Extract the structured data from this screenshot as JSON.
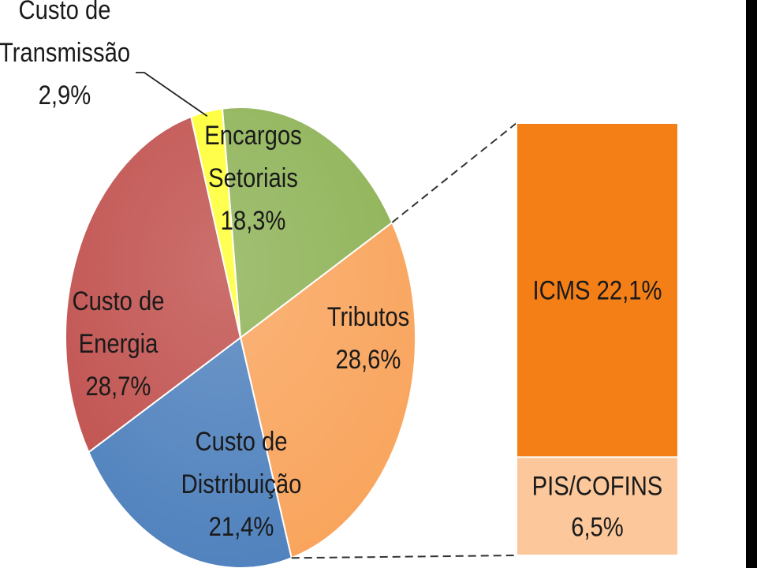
{
  "chart_data": {
    "type": "pie",
    "slices": [
      {
        "label": [
          "Tributos",
          "28,6%"
        ],
        "value": 28.6,
        "color": "#F9A45C"
      },
      {
        "label": [
          "Custo de",
          "Distribuição",
          "21,4%"
        ],
        "value": 21.4,
        "color": "#4F81BD"
      },
      {
        "label": [
          "Custo de",
          "Energia",
          "28,7%"
        ],
        "value": 28.7,
        "color": "#C0504D"
      },
      {
        "label": [
          "Custo de",
          "Transmissão",
          "2,9%"
        ],
        "value": 2.9,
        "color": "#FFFF33"
      },
      {
        "label": [
          "Encargos",
          "Setoriais",
          "18,3%"
        ],
        "value": 18.3,
        "color": "#8DB255"
      }
    ],
    "breakdown": {
      "of_slice": "Tributos",
      "segments": [
        {
          "label": [
            "ICMS 22,1%"
          ],
          "value": 22.1,
          "color": "#F47F17"
        },
        {
          "label": [
            "PIS/COFINS",
            "6,5%"
          ],
          "value": 6.5,
          "color": "#FCC89B"
        }
      ]
    }
  }
}
